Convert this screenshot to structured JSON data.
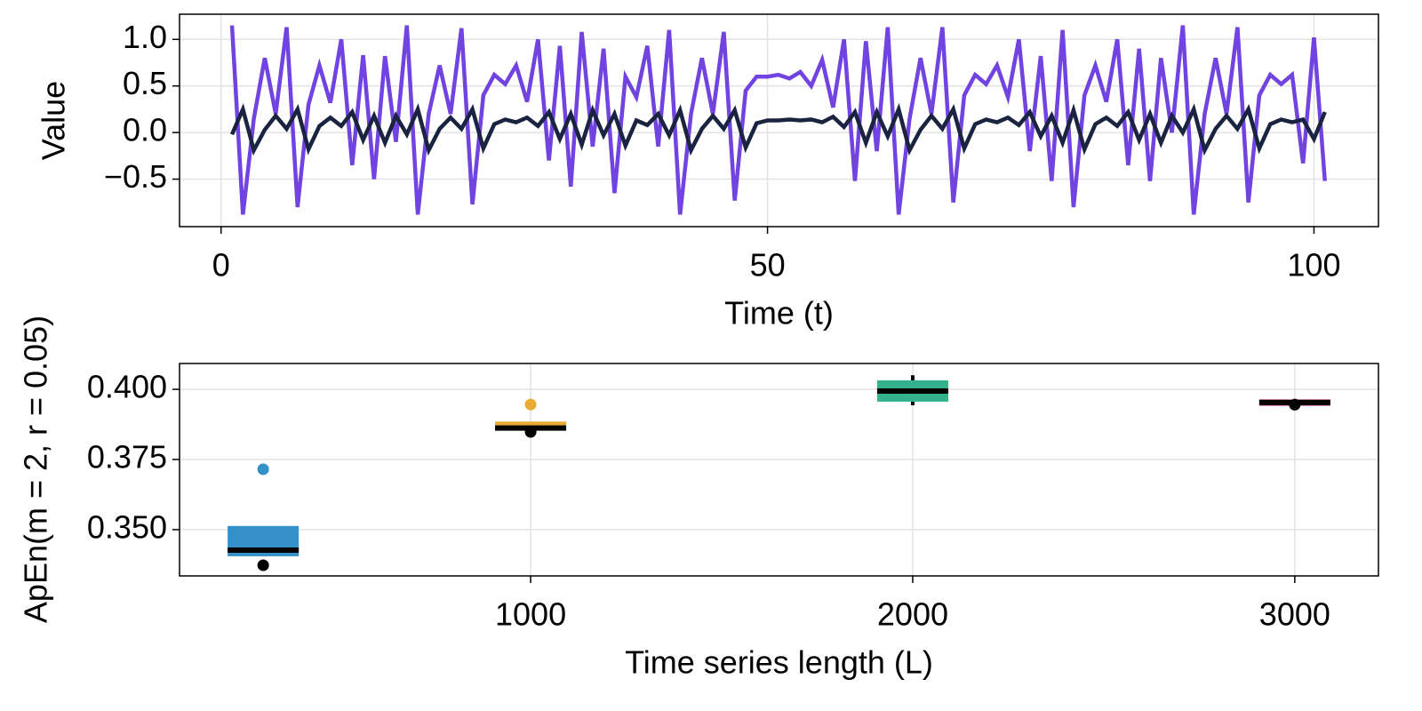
{
  "chart_data": [
    {
      "type": "line",
      "xlabel": "Time (t)",
      "ylabel": "Value",
      "grid": true,
      "x": [
        1,
        2,
        3,
        4,
        5,
        6,
        7,
        8,
        9,
        10,
        11,
        12,
        13,
        14,
        15,
        16,
        17,
        18,
        19,
        20,
        21,
        22,
        23,
        24,
        25,
        26,
        27,
        28,
        29,
        30,
        31,
        32,
        33,
        34,
        35,
        36,
        37,
        38,
        39,
        40,
        41,
        42,
        43,
        44,
        45,
        46,
        47,
        48,
        49,
        50,
        51,
        52,
        53,
        54,
        55,
        56,
        57,
        58,
        59,
        60,
        61,
        62,
        63,
        64,
        65,
        66,
        67,
        68,
        69,
        70,
        71,
        72,
        73,
        74,
        75,
        76,
        77,
        78,
        79,
        80,
        81,
        82,
        83,
        84,
        85,
        86,
        87,
        88,
        89,
        90,
        91,
        92,
        93,
        94,
        95,
        96,
        97,
        98,
        99,
        100,
        101
      ],
      "series": [
        {
          "color": "#7143e0",
          "values": [
            1.15,
            -0.88,
            0.15,
            0.8,
            0.2,
            1.13,
            -0.8,
            0.3,
            0.72,
            0.32,
            1.0,
            -0.35,
            0.83,
            -0.5,
            0.82,
            -0.1,
            1.15,
            -0.88,
            0.2,
            0.72,
            0.2,
            1.12,
            -0.77,
            0.4,
            0.62,
            0.52,
            0.72,
            0.33,
            1.0,
            -0.3,
            0.93,
            -0.58,
            1.08,
            -0.15,
            0.9,
            -0.65,
            0.6,
            0.38,
            0.93,
            -0.15,
            1.1,
            -0.88,
            0.2,
            0.8,
            0.2,
            1.08,
            -0.73,
            0.45,
            0.6,
            0.6,
            0.62,
            0.58,
            0.65,
            0.5,
            0.78,
            0.27,
            1.0,
            -0.52,
            0.98,
            -0.2,
            1.13,
            -0.88,
            0.15,
            0.8,
            0.2,
            1.13,
            -0.75,
            0.4,
            0.62,
            0.52,
            0.72,
            0.38,
            1.0,
            -0.2,
            0.82,
            -0.52,
            1.1,
            -0.8,
            0.4,
            0.72,
            0.33,
            1.0,
            -0.35,
            0.9,
            -0.52,
            0.8,
            0.0,
            1.15,
            -0.88,
            0.2,
            0.8,
            0.2,
            1.13,
            -0.75,
            0.4,
            0.62,
            0.52,
            0.62,
            -0.33,
            1.02,
            -0.52
          ]
        },
        {
          "color": "#1a2340",
          "values": [
            -0.02,
            0.25,
            -0.19,
            0.03,
            0.18,
            0.04,
            0.25,
            -0.18,
            0.07,
            0.16,
            0.07,
            0.22,
            -0.08,
            0.18,
            -0.11,
            0.18,
            -0.02,
            0.25,
            -0.19,
            0.04,
            0.16,
            0.04,
            0.25,
            -0.17,
            0.09,
            0.14,
            0.11,
            0.16,
            0.07,
            0.22,
            -0.07,
            0.2,
            -0.13,
            0.24,
            -0.03,
            0.2,
            -0.14,
            0.13,
            0.08,
            0.2,
            -0.03,
            0.24,
            -0.19,
            0.04,
            0.18,
            0.04,
            0.24,
            -0.16,
            0.1,
            0.13,
            0.13,
            0.14,
            0.13,
            0.14,
            0.11,
            0.17,
            0.06,
            0.22,
            -0.11,
            0.22,
            -0.04,
            0.25,
            -0.19,
            0.03,
            0.18,
            0.04,
            0.25,
            -0.17,
            0.09,
            0.14,
            0.11,
            0.16,
            0.08,
            0.22,
            -0.04,
            0.18,
            -0.11,
            0.24,
            -0.18,
            0.09,
            0.16,
            0.07,
            0.22,
            -0.08,
            0.2,
            -0.11,
            0.18,
            0,
            0.25,
            -0.19,
            0.04,
            0.18,
            0.04,
            0.25,
            -0.17,
            0.09,
            0.14,
            0.11,
            0.14,
            -0.07,
            0.22
          ]
        }
      ],
      "xlim": [
        -3.8,
        105.9
      ],
      "xticks": [
        0,
        50,
        100
      ],
      "ylim": [
        -1.01,
        1.27
      ],
      "yticks": [
        {
          "value": -0.5,
          "label": "−0.5"
        },
        {
          "value": 0,
          "label": "0.0"
        },
        {
          "value": 0.5,
          "label": "0.5"
        },
        {
          "value": 1,
          "label": "1.0"
        }
      ]
    },
    {
      "type": "box",
      "xlabel": "Time series length (L)",
      "ylabel": "ApEn(m = 2, r = 0.05)",
      "grid": true,
      "x": [
        300,
        1000,
        2000,
        3000
      ],
      "colors": [
        "#3390c8",
        "#eaab35",
        "#33b28c",
        "#e583b0"
      ],
      "q1": [
        0.3405,
        0.3855,
        0.3956,
        0.394
      ],
      "median": [
        0.3427,
        0.3862,
        0.3994,
        0.3953
      ],
      "q3": [
        0.3513,
        0.3885,
        0.4032,
        0.3965
      ],
      "whisker_low": [
        0.3405,
        0.3855,
        0.3943,
        0.394
      ],
      "whisker_high": [
        0.3513,
        0.3885,
        0.405,
        0.3966
      ],
      "outliers": [
        [
          0.3715
        ],
        [
          0.3946
        ],
        [],
        []
      ],
      "points": [
        0.3373,
        0.3848,
        null,
        0.3945
      ],
      "points_color": "#000000",
      "xlim": [
        81,
        3219
      ],
      "xticks": [
        1000,
        2000,
        3000
      ],
      "ylim": [
        0.3335,
        0.4092
      ],
      "yticks": [
        {
          "value": 0.35,
          "label": "0.350"
        },
        {
          "value": 0.375,
          "label": "0.375"
        },
        {
          "value": 0.4,
          "label": "0.400"
        }
      ]
    }
  ]
}
